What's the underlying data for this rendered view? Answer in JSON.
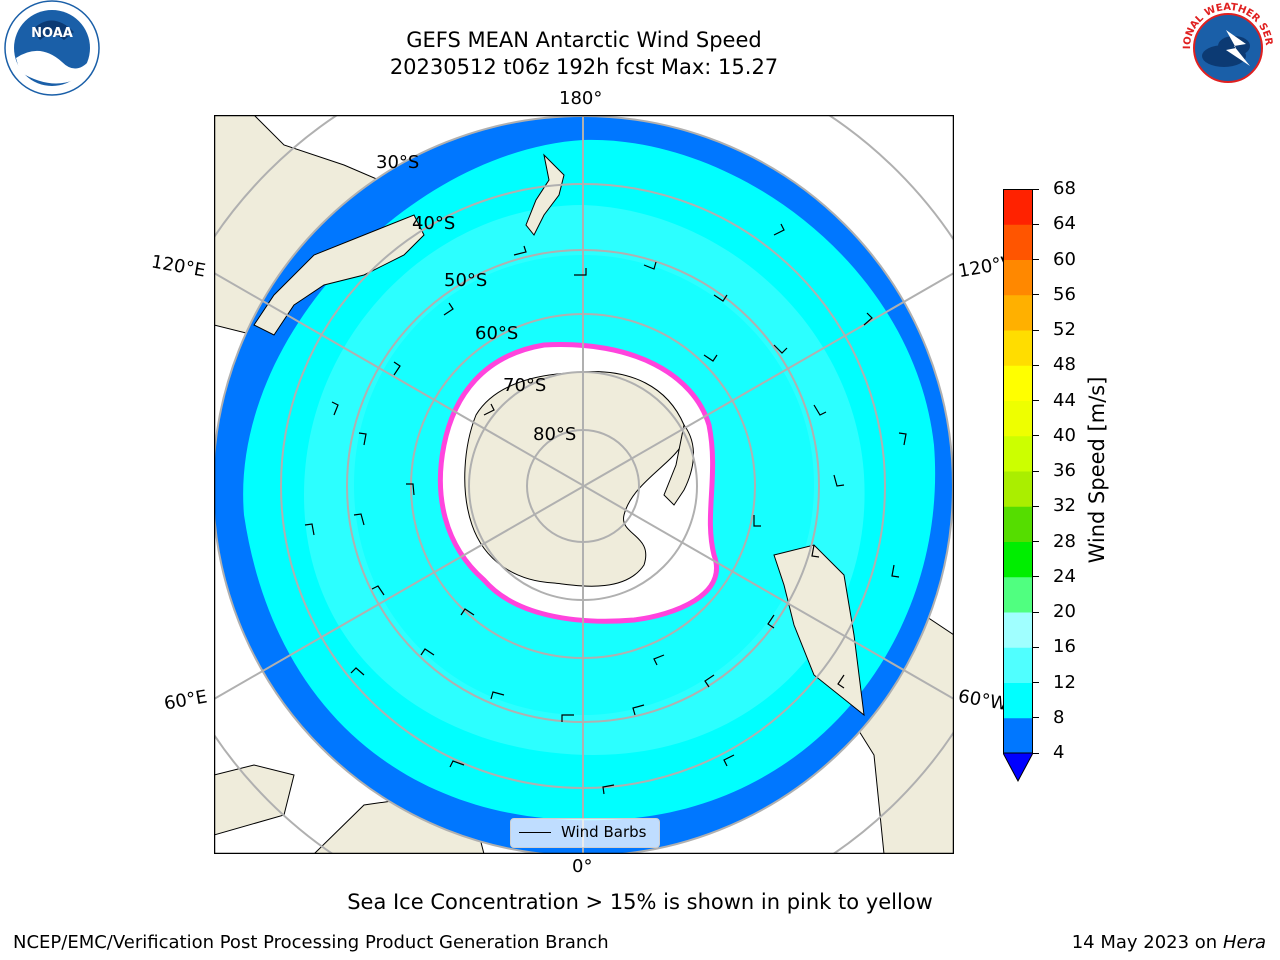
{
  "header": {
    "title_line1": "GEFS MEAN Antarctic Wind Speed",
    "title_line2": "20230512 t06z 192h fcst   Max: 15.27"
  },
  "logos": {
    "left": {
      "text": "NOAA",
      "icon": "noaa-logo-icon",
      "color": "#1a5fa8"
    },
    "right": {
      "text": "NATIONAL WEATHER SERVICE",
      "icon": "nws-logo-icon",
      "color": "#e02020"
    }
  },
  "map": {
    "longitude_labels": {
      "top": "180°",
      "bottom": "0°",
      "upper_left": "120°E",
      "upper_right": "120°W",
      "lower_left": "60°E",
      "lower_right": "60°W"
    },
    "latitude_labels": [
      "30°S",
      "40°S",
      "50°S",
      "60°S",
      "70°S",
      "80°S"
    ],
    "legend_label": "Wind Barbs",
    "colors": {
      "land": "#efecdb",
      "ocean_band_low": "#0077ff",
      "ocean_band_mid": "#00ffff",
      "ocean_band_high": "#50ffff",
      "ice": "#ffffff",
      "ice_edge": "#ff44dd",
      "grid": "#b0b0b0"
    }
  },
  "colorbar": {
    "label": "Wind Speed [m/s]",
    "ticks": [
      "4",
      "8",
      "12",
      "16",
      "20",
      "24",
      "28",
      "32",
      "36",
      "40",
      "44",
      "48",
      "52",
      "56",
      "60",
      "64",
      "68"
    ],
    "colors": [
      "#0077ff",
      "#00ffff",
      "#50ffff",
      "#a0ffff",
      "#50ff80",
      "#00ee00",
      "#55dd00",
      "#aaee00",
      "#ccff00",
      "#eeff00",
      "#ffff00",
      "#ffdd00",
      "#ffb000",
      "#ff8800",
      "#ff5500",
      "#ff2200"
    ],
    "extend_color": "#0000ff"
  },
  "caption": "Sea Ice Concentration > 15% is shown in pink to yellow",
  "footer": {
    "left": "NCEP/EMC/Verification Post Processing Product Generation Branch",
    "date": "14 May 2023 on",
    "host": "Hera"
  }
}
